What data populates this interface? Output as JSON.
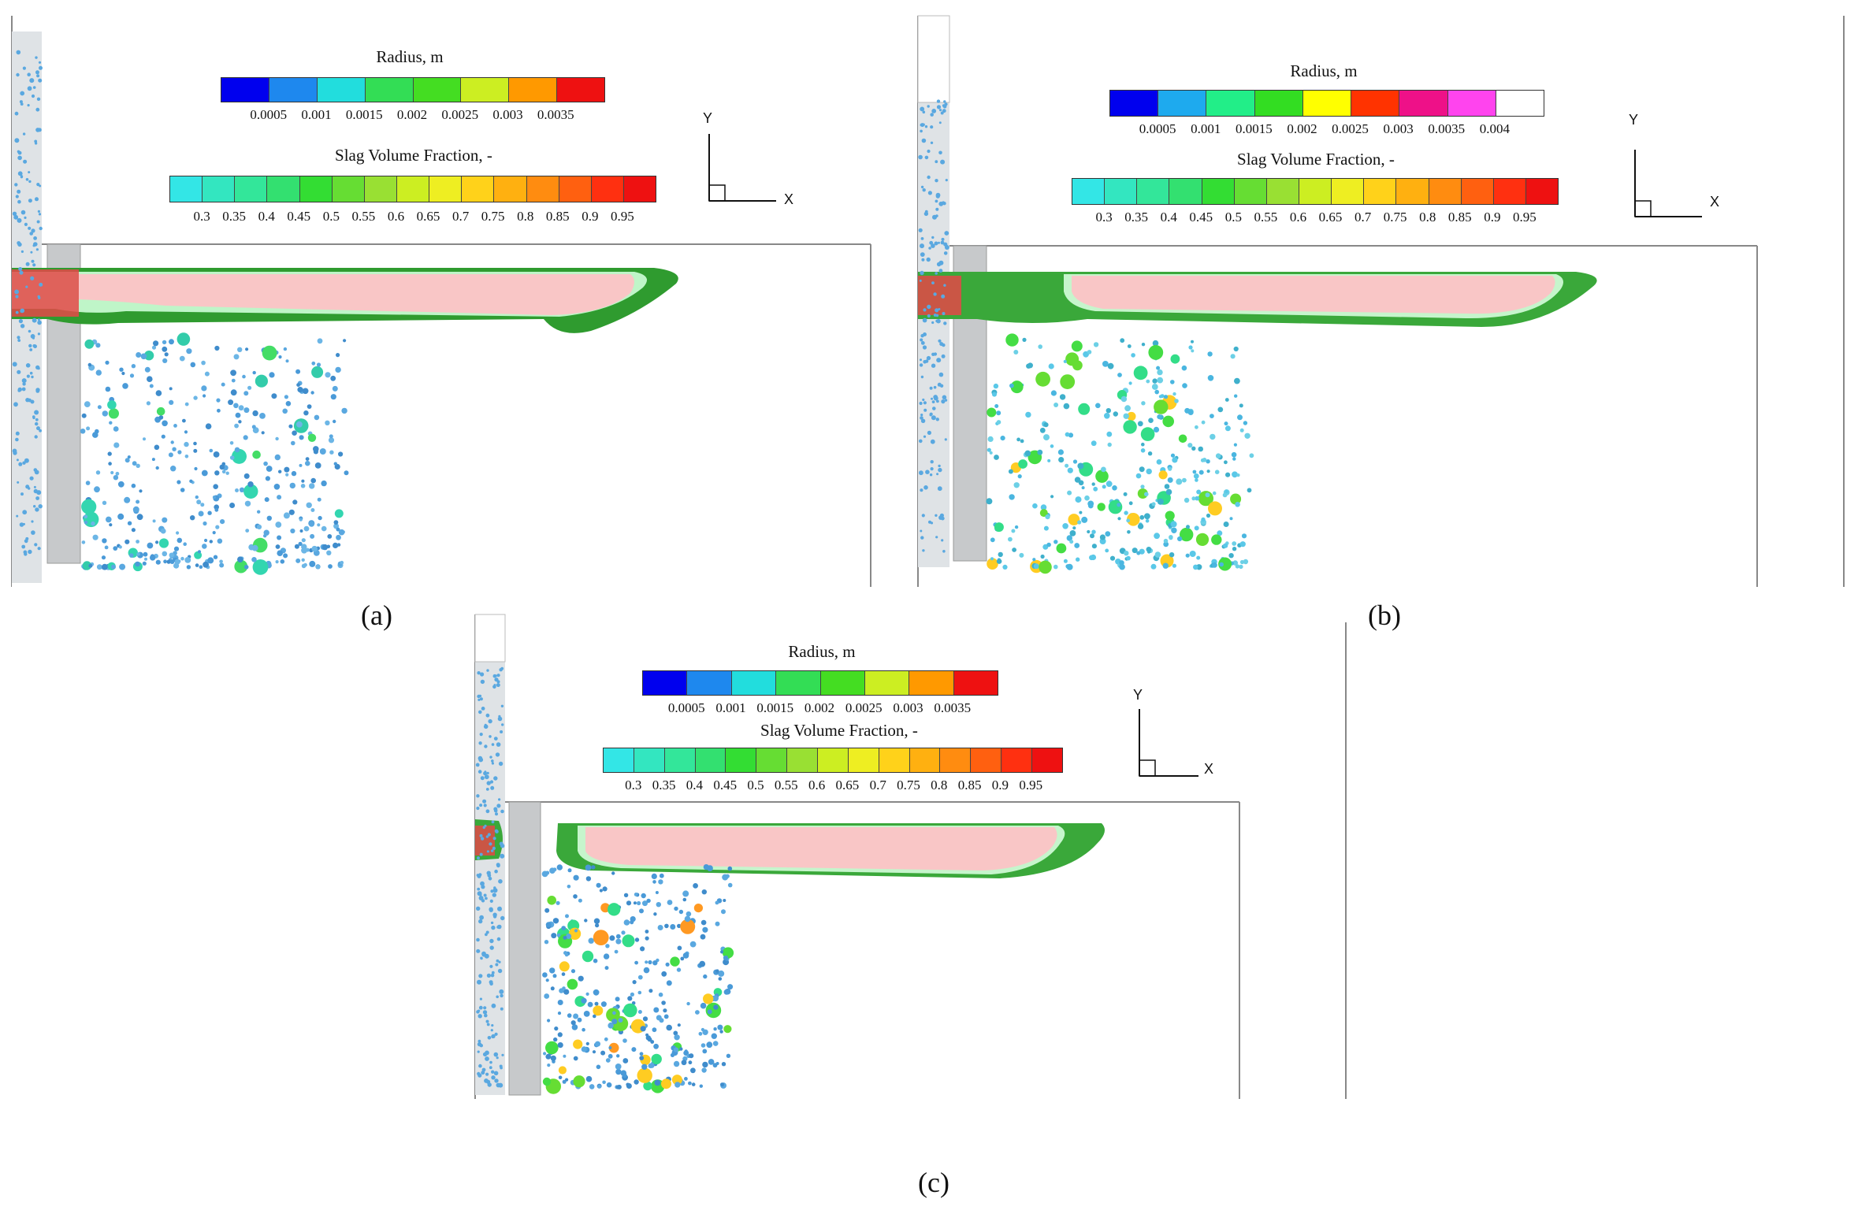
{
  "panels": [
    {
      "id": "a",
      "label": "(a)",
      "radius_legend": {
        "title": "Radius, m",
        "ticks": [
          "0.0005",
          "0.001",
          "0.0015",
          "0.002",
          "0.0025",
          "0.003",
          "0.0035"
        ],
        "colors": [
          "#0000ee",
          "#1e88ee",
          "#22dddd",
          "#33dd55",
          "#44dd22",
          "#ccee22",
          "#ff9900",
          "#ee1111"
        ]
      },
      "slag_legend": {
        "title": "Slag Volume Fraction, -",
        "ticks": [
          "0.3",
          "0.35",
          "0.4",
          "0.45",
          "0.5",
          "0.55",
          "0.6",
          "0.65",
          "0.7",
          "0.75",
          "0.8",
          "0.85",
          "0.9",
          "0.95"
        ],
        "colors": [
          "#33e6e6",
          "#33e6c0",
          "#33e69a",
          "#33e070",
          "#33dd33",
          "#66dd33",
          "#99e033",
          "#ccee22",
          "#eeee22",
          "#ffd21a",
          "#ffb010",
          "#ff8c10",
          "#ff6010",
          "#ff3010",
          "#ee1111"
        ]
      },
      "axis": {
        "x_label": "X",
        "y_label": "Y"
      }
    },
    {
      "id": "b",
      "label": "(b)",
      "radius_legend": {
        "title": "Radius, m",
        "ticks": [
          "0.0005",
          "0.001",
          "0.0015",
          "0.002",
          "0.0025",
          "0.003",
          "0.0035",
          "0.004"
        ],
        "colors": [
          "#0000ee",
          "#1eaaee",
          "#22ee88",
          "#33dd22",
          "#ffff00",
          "#ff3300",
          "#ee1188",
          "#ff44ee",
          "#ffffff"
        ]
      },
      "slag_legend": {
        "title": "Slag Volume Fraction, -",
        "ticks": [
          "0.3",
          "0.35",
          "0.4",
          "0.45",
          "0.5",
          "0.55",
          "0.6",
          "0.65",
          "0.7",
          "0.75",
          "0.8",
          "0.85",
          "0.9",
          "0.95"
        ],
        "colors": [
          "#33e6e6",
          "#33e6c0",
          "#33e69a",
          "#33e070",
          "#33dd33",
          "#66dd33",
          "#99e033",
          "#ccee22",
          "#eeee22",
          "#ffd21a",
          "#ffb010",
          "#ff8c10",
          "#ff6010",
          "#ff3010",
          "#ee1111"
        ]
      },
      "axis": {
        "x_label": "X",
        "y_label": "Y"
      }
    },
    {
      "id": "c",
      "label": "(c)",
      "radius_legend": {
        "title": "Radius, m",
        "ticks": [
          "0.0005",
          "0.001",
          "0.0015",
          "0.002",
          "0.0025",
          "0.003",
          "0.0035"
        ],
        "colors": [
          "#0000ee",
          "#1e88ee",
          "#22dddd",
          "#33dd55",
          "#44dd22",
          "#ccee22",
          "#ff9900",
          "#ee1111"
        ]
      },
      "slag_legend": {
        "title": "Slag Volume Fraction, -",
        "ticks": [
          "0.3",
          "0.35",
          "0.4",
          "0.45",
          "0.5",
          "0.55",
          "0.6",
          "0.65",
          "0.7",
          "0.75",
          "0.8",
          "0.85",
          "0.9",
          "0.95"
        ],
        "colors": [
          "#33e6e6",
          "#33e6c0",
          "#33e69a",
          "#33e070",
          "#33dd33",
          "#66dd33",
          "#99e033",
          "#ccee22",
          "#eeee22",
          "#ffd21a",
          "#ffb010",
          "#ff8c10",
          "#ff6010",
          "#ff3010",
          "#ee1111"
        ]
      },
      "axis": {
        "x_label": "X",
        "y_label": "Y"
      }
    }
  ]
}
